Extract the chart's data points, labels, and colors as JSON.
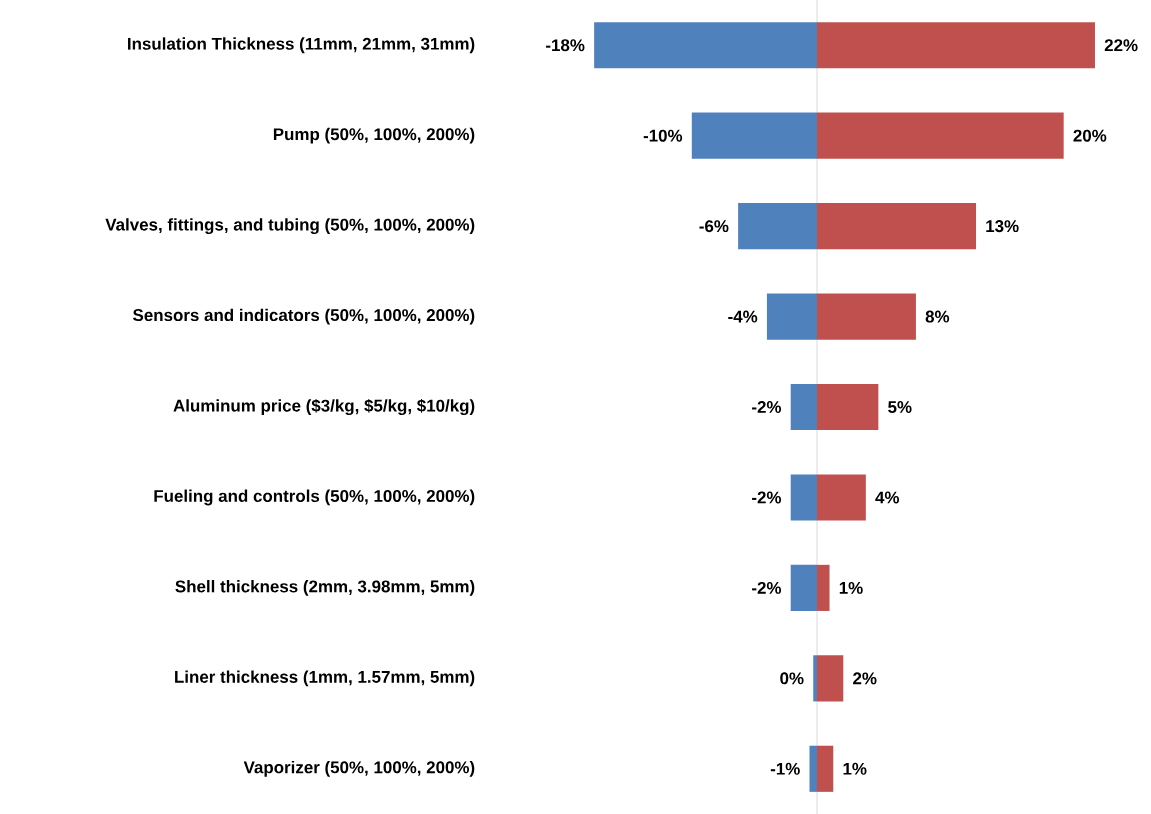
{
  "chart_data": {
    "type": "bar",
    "orientation": "horizontal",
    "stacked": true,
    "categories": [
      "Insulation Thickness (11mm, 21mm, 31mm)",
      "Pump (50%, 100%, 200%)",
      "Valves, fittings, and tubing (50%, 100%, 200%)",
      "Sensors and indicators (50%, 100%, 200%)",
      "Aluminum price ($3/kg, $5/kg, $10/kg)",
      "Fueling and controls (50%, 100%, 200%)",
      "Shell thickness (2mm, 3.98mm, 5mm)",
      "Liner thickness (1mm, 1.57mm, 5mm)",
      "Vaporizer (50%, 100%, 200%)"
    ],
    "series": [
      {
        "color": "#4f81bd",
        "values": [
          -17.8,
          -10.0,
          -6.3,
          -4.0,
          -2.1,
          -2.1,
          -2.1,
          -0.3,
          -0.6
        ],
        "value_labels": [
          "-18%",
          "-10%",
          "-6%",
          "-4%",
          "-2%",
          "-2%",
          "-2%",
          "0%",
          "-1%"
        ]
      },
      {
        "color": "#c0504d",
        "values": [
          22.2,
          19.7,
          12.7,
          7.9,
          4.9,
          3.9,
          1.0,
          2.1,
          1.3
        ],
        "value_labels": [
          "22%",
          "20%",
          "13%",
          "8%",
          "5%",
          "4%",
          "1%",
          "2%",
          "1%"
        ]
      }
    ]
  }
}
